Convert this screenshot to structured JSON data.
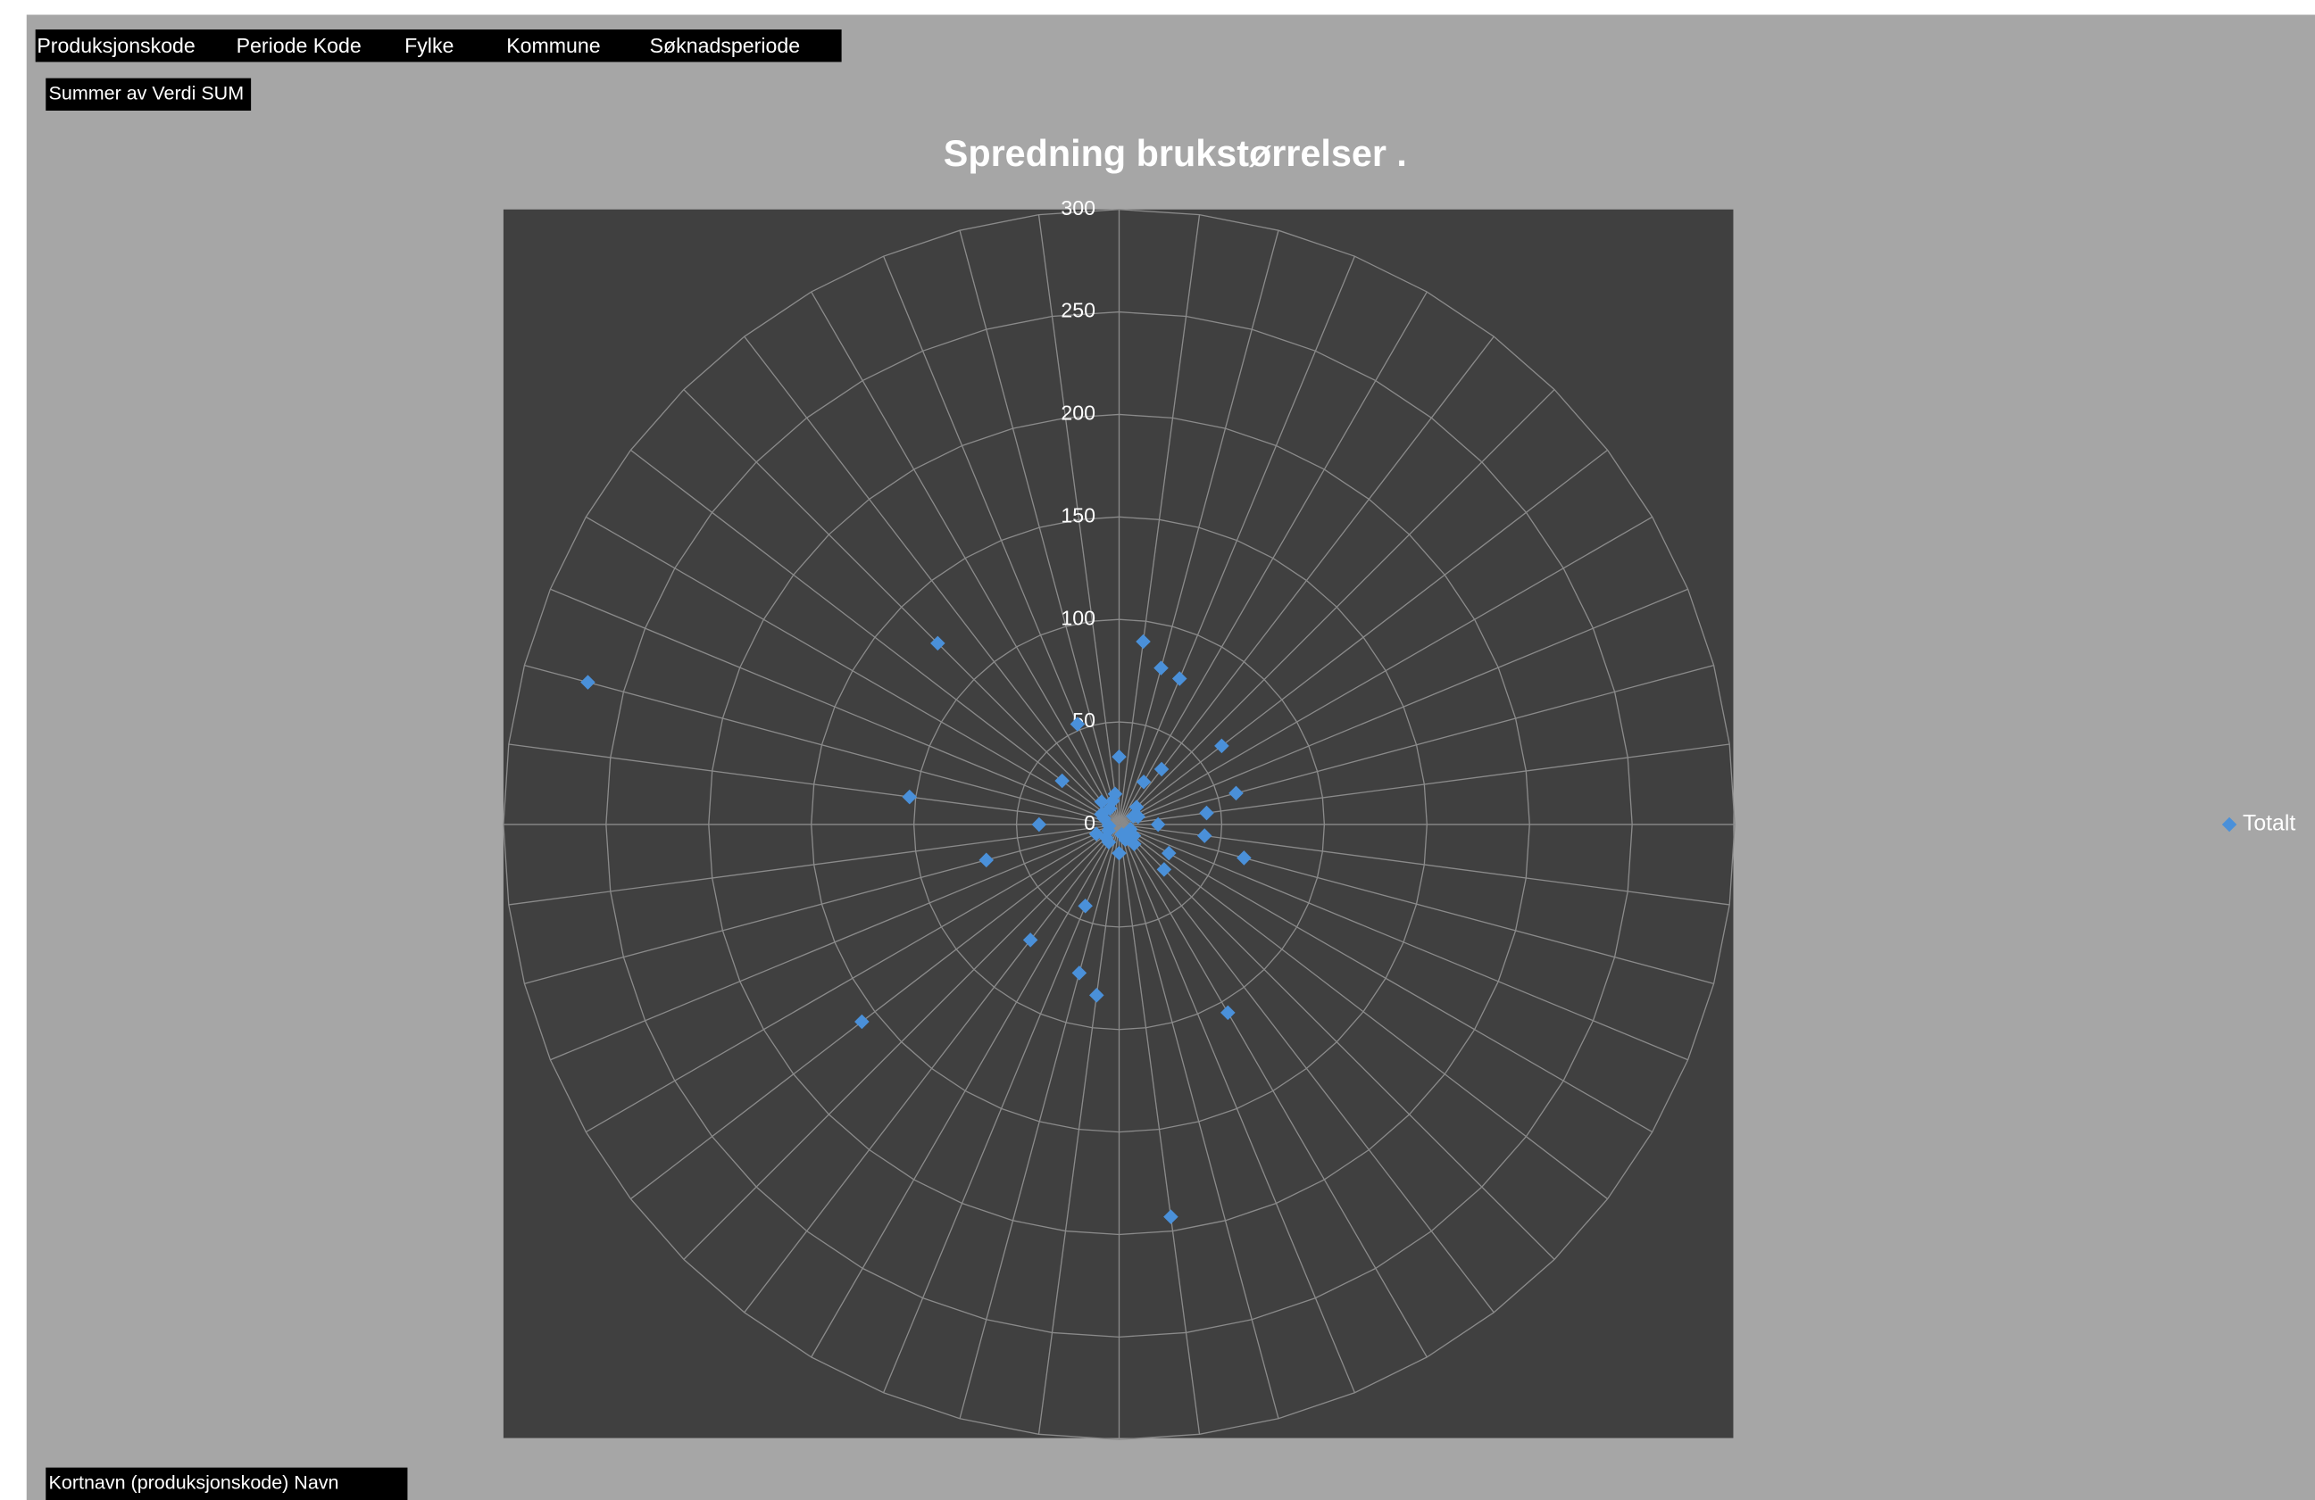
{
  "pivot_fields": {
    "filters": [
      "Produksjonskode",
      "Periode Kode",
      "Fylke",
      "Kommune",
      "Søknadsperiode"
    ],
    "values_field": "Summer av Verdi SUM",
    "row_field": "Kortnavn (produksjonskode) Navn"
  },
  "chart_data": {
    "type": "radar",
    "title": "Spredning brukstørrelser  .",
    "categories": [
      null,
      null,
      null,
      null,
      null,
      null,
      null,
      null,
      null,
      null,
      null,
      null,
      null,
      null,
      null,
      null,
      null,
      null,
      null,
      null,
      null,
      null,
      null,
      null,
      null,
      null,
      null,
      null,
      null,
      null,
      null,
      null,
      null,
      null,
      null,
      null,
      null,
      null,
      null,
      null,
      null,
      null,
      null,
      null,
      null,
      null,
      null,
      null
    ],
    "series": [
      {
        "name": "Totalt",
        "color": "#4a90d9",
        "values": [
          33,
          90,
          79,
          77,
          24,
          34,
          12,
          63,
          8,
          10,
          59,
          43,
          19,
          42,
          63,
          6,
          28,
          9,
          31,
          12,
          106,
          8,
          5,
          193,
          14,
          84,
          75,
          43,
          10,
          71,
          9,
          158,
          6,
          12,
          67,
          5,
          39,
          103,
          268,
          8,
          10,
          35,
          125,
          14,
          9,
          53,
          12,
          15
        ]
      }
    ],
    "rlim": [
      0,
      300
    ],
    "rticks": [
      0,
      50,
      100,
      150,
      200,
      250,
      300
    ],
    "grid": true,
    "legend": "right"
  }
}
